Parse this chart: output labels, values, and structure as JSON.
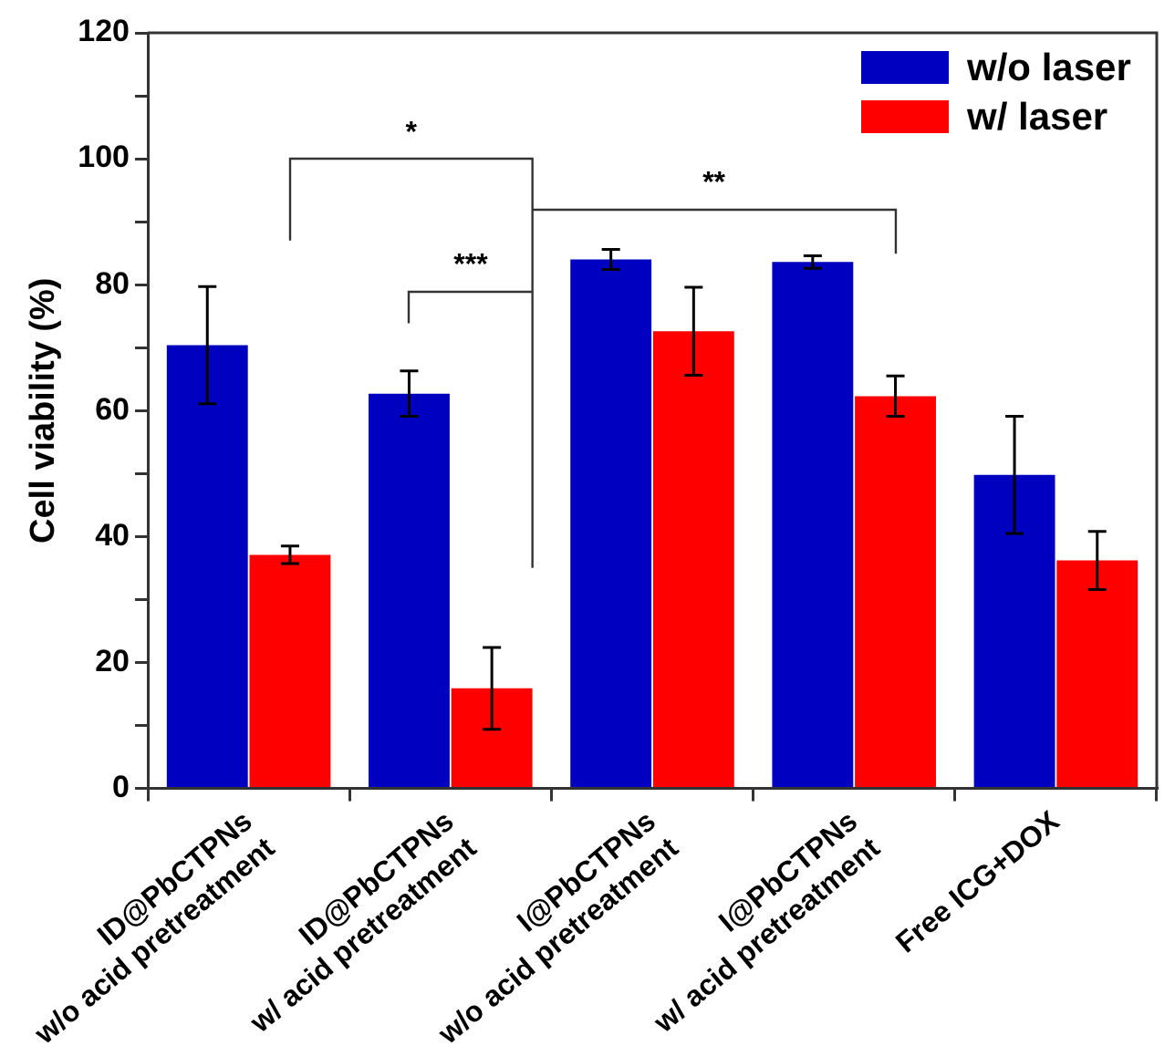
{
  "chart_data": {
    "type": "bar",
    "ylabel": "Cell viability (%)",
    "categories": [
      "ID@PbCTPNs\nw/o acid pretreatment",
      "ID@PbCTPNs\nw/ acid pretreatment",
      "I@PbCTPNs\nw/o acid pretreatment",
      "I@PbCTPNs\nw/ acid pretreatment",
      "Free ICG+DOX"
    ],
    "series": [
      {
        "name": "w/o laser",
        "color": "#0000c0",
        "values": [
          70.4,
          62.7,
          84.0,
          83.6,
          49.8
        ],
        "errors": [
          9.3,
          3.6,
          1.6,
          1.0,
          9.3
        ]
      },
      {
        "name": "w/ laser",
        "color": "#ff0000",
        "values": [
          37.1,
          15.9,
          72.6,
          62.3,
          36.2
        ],
        "errors": [
          1.4,
          6.5,
          7.0,
          3.2,
          4.6
        ]
      }
    ],
    "ylim": [
      0,
      120
    ],
    "yticks": [
      0,
      {
        "value": 10,
        "label": null
      },
      20,
      {
        "value": 30,
        "label": null
      },
      40,
      {
        "value": 50,
        "label": null
      },
      60,
      {
        "value": 70,
        "label": null
      },
      80,
      {
        "value": 90,
        "label": null
      },
      100,
      {
        "value": 110,
        "label": null
      },
      120
    ],
    "grid": false,
    "legend": "top right",
    "annotations": [
      "*",
      "***",
      "**"
    ]
  }
}
